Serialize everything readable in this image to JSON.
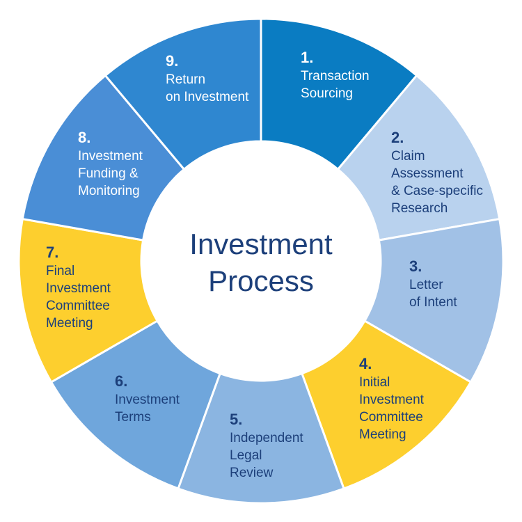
{
  "center": {
    "line1": "Investment",
    "line2": "Process"
  },
  "colors": {
    "number_dark": "#1c3f7a",
    "label_dark": "#1c3f7a",
    "number_light": "#ffffff",
    "label_light": "#ffffff",
    "center_fill": "#ffffff"
  },
  "steps": [
    {
      "number": "1.",
      "lines": [
        "Transaction",
        "Sourcing"
      ],
      "color": "#0a7cc2",
      "text": "light"
    },
    {
      "number": "2.",
      "lines": [
        "Claim",
        "Assessment",
        "& Case-specific",
        "Research"
      ],
      "color": "#b9d2ee",
      "text": "dark"
    },
    {
      "number": "3.",
      "lines": [
        "Letter",
        "of Intent"
      ],
      "color": "#a1c1e6",
      "text": "dark"
    },
    {
      "number": "4.",
      "lines": [
        "Initial",
        "Investment",
        "Committee",
        "Meeting"
      ],
      "color": "#fdcf2e",
      "text": "dark"
    },
    {
      "number": "5.",
      "lines": [
        "Independent",
        "Legal",
        "Review"
      ],
      "color": "#8bb5e1",
      "text": "dark"
    },
    {
      "number": "6.",
      "lines": [
        "Investment",
        "Terms"
      ],
      "color": "#6fa6dc",
      "text": "dark"
    },
    {
      "number": "7.",
      "lines": [
        "Final",
        "Investment",
        "Committee",
        "Meeting"
      ],
      "color": "#fdcf2e",
      "text": "dark"
    },
    {
      "number": "8.",
      "lines": [
        "Investment",
        "Funding &",
        "Monitoring"
      ],
      "color": "#4a8ed6",
      "text": "light"
    },
    {
      "number": "9.",
      "lines": [
        "Return",
        "on Investment"
      ],
      "color": "#2f87d0",
      "text": "light"
    }
  ]
}
